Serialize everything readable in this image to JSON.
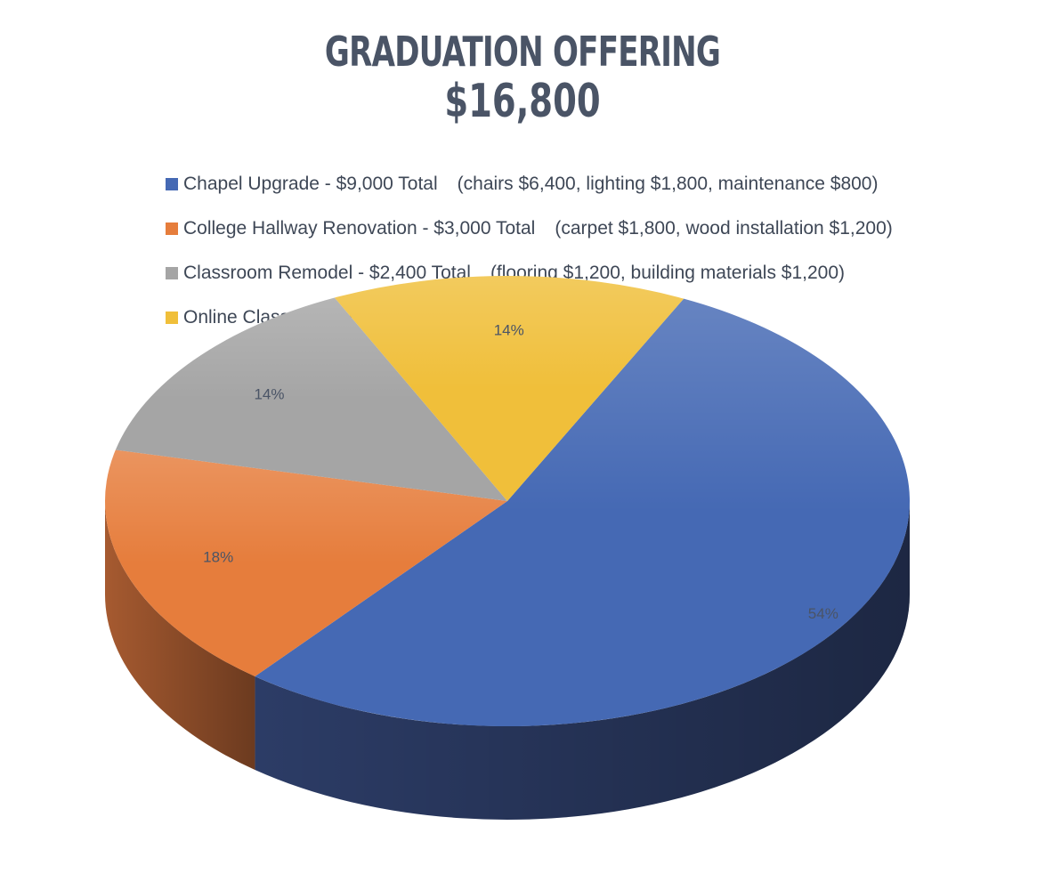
{
  "header": {
    "title": "GRADUATION OFFERING",
    "subtitle": "$16,800"
  },
  "legend": [
    {
      "label": "Chapel Upgrade - $9,000 Total",
      "detail": "(chairs $6,400, lighting $1,800, maintenance $800)",
      "color": "#4569b4"
    },
    {
      "label": "College Hallway Renovation - $3,000 Total",
      "detail": "(carpet $1,800, wood installation $1,200)",
      "color": "#e67d3c"
    },
    {
      "label": "Classroom Remodel - $2,400 Total",
      "detail": "(flooring $1,200, building materials $1,200)",
      "color": "#a5a5a5"
    },
    {
      "label": "Online Class Support - $2,400 Total",
      "detail": "",
      "color": "#f0bf3a"
    }
  ],
  "chart_data": {
    "type": "pie",
    "title": "GRADUATION OFFERING",
    "subtitle": "$16,800",
    "style": "3d",
    "legend_position": "top",
    "categories": [
      "Chapel Upgrade",
      "College Hallway Renovation",
      "Classroom Remodel",
      "Online Class Support"
    ],
    "values": [
      9000,
      3000,
      2400,
      2400
    ],
    "data_labels": [
      "54%",
      "18%",
      "14%",
      "14%"
    ],
    "colors": [
      "#4569b4",
      "#e67d3c",
      "#a5a5a5",
      "#f0bf3a"
    ],
    "side_colors": [
      "#2c3c66",
      "#a65a30",
      "#7a7a7a",
      "#b08a26"
    ]
  }
}
